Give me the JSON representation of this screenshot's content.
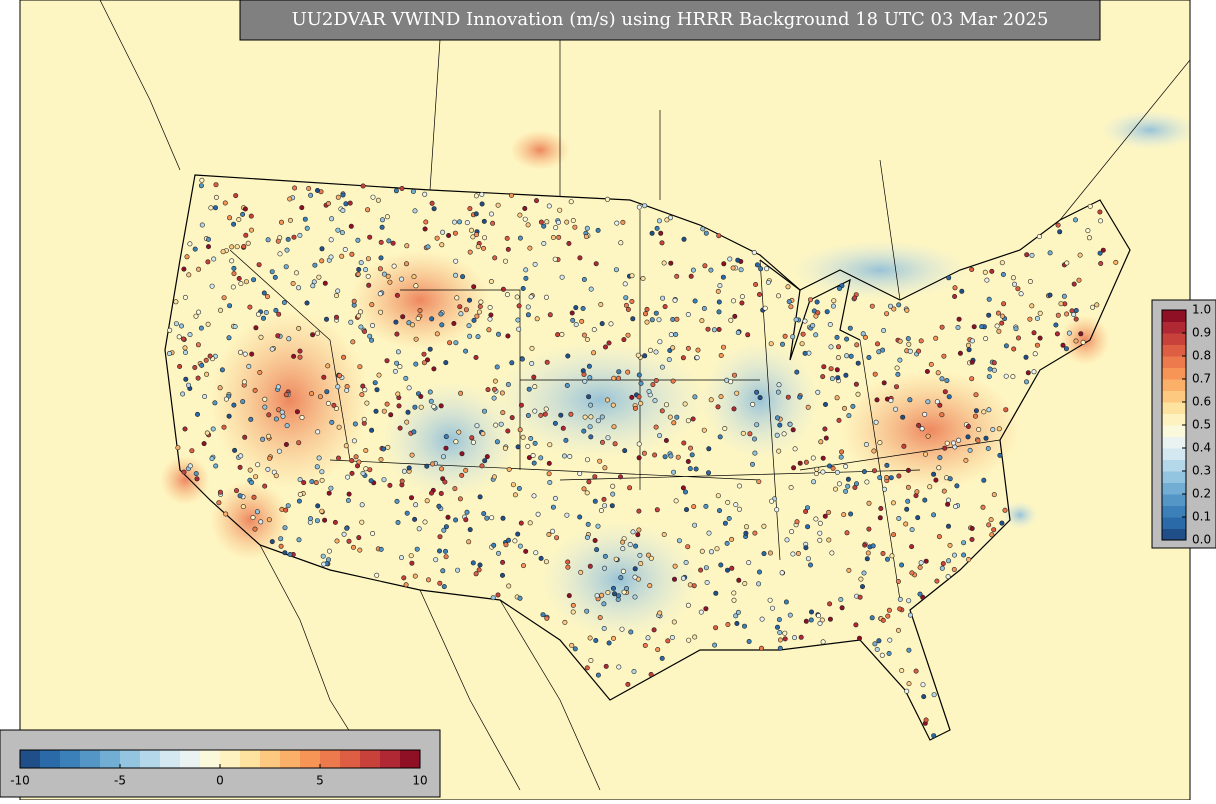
{
  "title": "UU2DVAR VWIND Innovation (m/s) using HRRR Background 18 UTC 03 Mar 2025",
  "palette": [
    "#1f4e88",
    "#2a6aa8",
    "#3b80b8",
    "#5496c6",
    "#72aed3",
    "#93c5e0",
    "#b4d8ea",
    "#d3e8f1",
    "#eaf3f2",
    "#fbf9dc",
    "#fef3c0",
    "#fde2a0",
    "#fdc980",
    "#fbb069",
    "#f79557",
    "#ec7a4c",
    "#dd5e42",
    "#c8413a",
    "#b02834",
    "#8f0f25"
  ],
  "colorbar_bottom": {
    "lim": [
      -10,
      10
    ],
    "ticks": [
      -10,
      -5,
      0,
      5,
      10
    ]
  },
  "colorbar_right": {
    "lim": [
      0,
      1
    ],
    "ticks": [
      {
        "value": 0,
        "label": "0.0"
      },
      {
        "value": 0.1,
        "label": "0.1"
      },
      {
        "value": 0.2,
        "label": "0.2"
      },
      {
        "value": 0.3,
        "label": "0.3"
      },
      {
        "value": 0.4,
        "label": "0.4"
      },
      {
        "value": 0.5,
        "label": "0.5"
      },
      {
        "value": 0.6,
        "label": "0.6"
      },
      {
        "value": 0.7,
        "label": "0.7"
      },
      {
        "value": 0.8,
        "label": "0.8"
      },
      {
        "value": 0.9,
        "label": "0.9"
      },
      {
        "value": 1,
        "label": "1.0"
      }
    ]
  }
}
